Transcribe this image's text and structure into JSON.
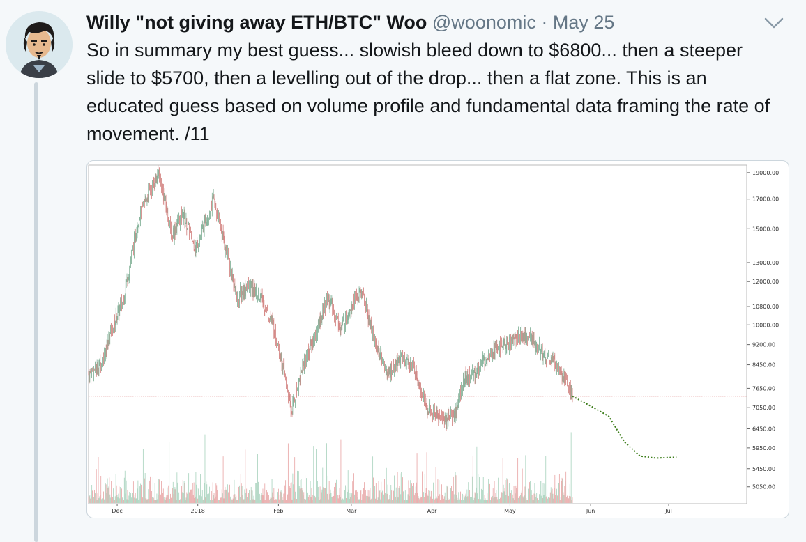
{
  "tweet": {
    "display_name": "Willy \"not giving away ETH/BTC\" Woo",
    "handle": "@woonomic",
    "separator": "·",
    "date": "May 25",
    "text": "So in summary my best guess... slowish bleed down to $6800... then a steeper slide to $5700, then a levelling out of the drop... then a flat zone. This is an educated guess based on volume profile and fundamental data framing the rate of movement. /11"
  },
  "icons": {
    "avatar": "cartoon-avatar-icon",
    "menu": "chevron-down-icon"
  },
  "colors": {
    "candle_up": "#4c8f6b",
    "candle_down": "#c0504d",
    "volume_up": "#a6d2bc",
    "volume_down": "#e8a3a3",
    "forecast": "#3c7d1a",
    "support_line": "#d97a7a"
  },
  "chart_data": {
    "type": "line",
    "title": "",
    "xlabel": "",
    "ylabel": "",
    "y_ticks": [
      "19000.00",
      "17000.00",
      "15000.00",
      "13000.00",
      "12000.00",
      "10800.00",
      "10000.00",
      "9200.00",
      "8450.00",
      "7650.00",
      "7050.00",
      "6450.00",
      "5950.00",
      "5450.00",
      "5050.00"
    ],
    "y_scale": "log",
    "ylim": [
      4900,
      19500
    ],
    "x_ticks": [
      "Dec",
      "2018",
      "Feb",
      "Mar",
      "Apr",
      "May",
      "Jun",
      "Jul"
    ],
    "xlim": [
      "2017-11-20",
      "2018-07-31"
    ],
    "grid": false,
    "support_level": 7400,
    "series": [
      {
        "values_kind": "price",
        "x": [
          "2017-11-20",
          "2017-11-25",
          "2017-11-29",
          "2017-12-03",
          "2017-12-06",
          "2017-12-09",
          "2017-12-12",
          "2017-12-17",
          "2017-12-22",
          "2017-12-26",
          "2017-12-31",
          "2018-01-03",
          "2018-01-07",
          "2018-01-12",
          "2018-01-16",
          "2018-01-20",
          "2018-01-25",
          "2018-01-30",
          "2018-02-02",
          "2018-02-06",
          "2018-02-10",
          "2018-02-15",
          "2018-02-20",
          "2018-02-25",
          "2018-03-01",
          "2018-03-05",
          "2018-03-10",
          "2018-03-15",
          "2018-03-20",
          "2018-03-25",
          "2018-03-30",
          "2018-04-01",
          "2018-04-06",
          "2018-04-10",
          "2018-04-13",
          "2018-04-18",
          "2018-04-24",
          "2018-04-30",
          "2018-05-05",
          "2018-05-10",
          "2018-05-15",
          "2018-05-20",
          "2018-05-25"
        ],
        "values": [
          8100,
          8500,
          9800,
          11000,
          12800,
          15500,
          17000,
          19000,
          14500,
          16000,
          13800,
          15000,
          16900,
          13600,
          11200,
          11800,
          11300,
          10000,
          8700,
          6900,
          8300,
          9500,
          11200,
          9800,
          10900,
          11500,
          9300,
          8100,
          8700,
          8400,
          7000,
          6900,
          6700,
          6900,
          7900,
          8200,
          9000,
          9200,
          9600,
          9400,
          8700,
          8400,
          7400
        ]
      },
      {
        "values_kind": "forecast",
        "x": [
          "2018-05-25",
          "2018-06-01",
          "2018-06-08",
          "2018-06-14",
          "2018-06-20",
          "2018-06-26",
          "2018-07-04"
        ],
        "values": [
          7400,
          7100,
          6800,
          6100,
          5750,
          5700,
          5720
        ]
      }
    ]
  }
}
